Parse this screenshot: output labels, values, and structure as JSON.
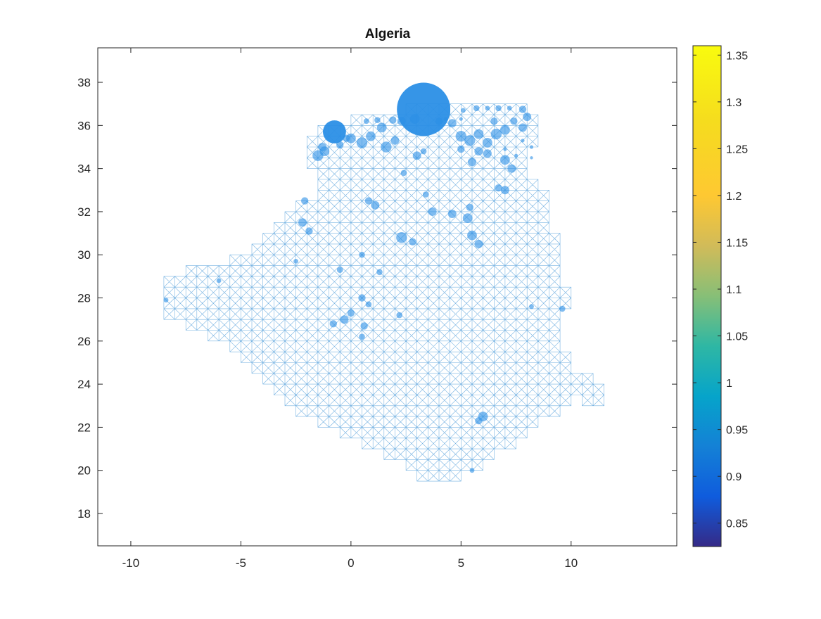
{
  "chart_data": {
    "type": "scatter",
    "title": "Algeria",
    "xlabel": "",
    "ylabel": "",
    "xlim": [
      -11.5,
      14.8
    ],
    "ylim": [
      16.5,
      39.6
    ],
    "xticks": [
      -10,
      -5,
      0,
      5,
      10
    ],
    "yticks": [
      18,
      20,
      22,
      24,
      26,
      28,
      30,
      32,
      34,
      36,
      38
    ],
    "grid": false,
    "colormap": "parula",
    "colorbar": {
      "limits": [
        0.825,
        1.36
      ],
      "ticks": [
        0.85,
        0.9,
        0.95,
        1,
        1.05,
        1.1,
        1.15,
        1.2,
        1.25,
        1.3,
        1.35
      ]
    },
    "marker_color": "#2b8fe6",
    "mesh_color": "#4a9ad8",
    "mesh_spacing": 0.5,
    "country_outline": [
      [
        -8.7,
        28.9
      ],
      [
        -8.7,
        27.3
      ],
      [
        -6.0,
        26.0
      ],
      [
        -4.8,
        25.0
      ],
      [
        -2.0,
        22.5
      ],
      [
        1.0,
        21.0
      ],
      [
        2.7,
        20.0
      ],
      [
        3.3,
        19.4
      ],
      [
        4.7,
        19.4
      ],
      [
        5.7,
        20.2
      ],
      [
        6.8,
        21.0
      ],
      [
        8.0,
        21.6
      ],
      [
        9.2,
        22.7
      ],
      [
        10.3,
        23.3
      ],
      [
        11.2,
        23.2
      ],
      [
        11.8,
        23.7
      ],
      [
        11.2,
        24.3
      ],
      [
        10.5,
        24.5
      ],
      [
        10.0,
        25.0
      ],
      [
        9.5,
        26.2
      ],
      [
        9.8,
        27.5
      ],
      [
        9.8,
        28.3
      ],
      [
        9.6,
        29.8
      ],
      [
        9.3,
        30.7
      ],
      [
        8.9,
        31.7
      ],
      [
        9.0,
        32.5
      ],
      [
        8.4,
        33.2
      ],
      [
        8.0,
        33.9
      ],
      [
        8.2,
        34.7
      ],
      [
        8.3,
        35.7
      ],
      [
        8.4,
        36.5
      ],
      [
        7.5,
        36.9
      ],
      [
        6.3,
        37.0
      ],
      [
        5.0,
        36.8
      ],
      [
        3.0,
        36.8
      ],
      [
        1.0,
        36.6
      ],
      [
        -1.0,
        36.0
      ],
      [
        -2.0,
        35.1
      ],
      [
        -1.8,
        34.3
      ],
      [
        -1.3,
        32.6
      ],
      [
        -2.5,
        32.2
      ],
      [
        -3.6,
        31.5
      ],
      [
        -3.8,
        30.9
      ],
      [
        -5.0,
        29.9
      ],
      [
        -7.0,
        29.4
      ]
    ],
    "points": [
      [
        3.3,
        36.75,
        4.4
      ],
      [
        -0.75,
        35.7,
        1.9
      ],
      [
        -1.5,
        34.6,
        0.9
      ],
      [
        -1.2,
        34.8,
        0.8
      ],
      [
        0.0,
        35.4,
        0.8
      ],
      [
        0.5,
        35.2,
        0.9
      ],
      [
        0.9,
        35.5,
        0.8
      ],
      [
        1.4,
        35.9,
        0.8
      ],
      [
        1.6,
        35.0,
        0.9
      ],
      [
        2.0,
        35.3,
        0.7
      ],
      [
        2.3,
        36.2,
        0.7
      ],
      [
        2.9,
        36.3,
        0.8
      ],
      [
        1.9,
        36.25,
        0.6
      ],
      [
        1.2,
        36.25,
        0.5
      ],
      [
        0.7,
        36.2,
        0.45
      ],
      [
        -0.2,
        35.4,
        0.6
      ],
      [
        -1.3,
        35.0,
        0.7
      ],
      [
        -0.5,
        35.1,
        0.6
      ],
      [
        3.0,
        34.6,
        0.7
      ],
      [
        3.3,
        34.8,
        0.5
      ],
      [
        4.0,
        36.2,
        0.6
      ],
      [
        4.6,
        36.1,
        0.7
      ],
      [
        5.0,
        35.5,
        0.9
      ],
      [
        5.4,
        35.3,
        0.9
      ],
      [
        5.8,
        35.6,
        0.8
      ],
      [
        6.2,
        35.2,
        0.8
      ],
      [
        6.6,
        35.6,
        0.9
      ],
      [
        7.0,
        35.8,
        0.8
      ],
      [
        7.4,
        36.2,
        0.6
      ],
      [
        7.8,
        35.9,
        0.7
      ],
      [
        8.0,
        36.4,
        0.7
      ],
      [
        6.5,
        36.2,
        0.6
      ],
      [
        5.7,
        36.8,
        0.5
      ],
      [
        6.2,
        36.8,
        0.4
      ],
      [
        6.7,
        36.8,
        0.5
      ],
      [
        7.2,
        36.8,
        0.4
      ],
      [
        7.8,
        36.75,
        0.6
      ],
      [
        5.1,
        36.7,
        0.4
      ],
      [
        5.0,
        36.3,
        0.3
      ],
      [
        4.3,
        36.3,
        0.3
      ],
      [
        5.0,
        34.9,
        0.6
      ],
      [
        5.8,
        34.8,
        0.7
      ],
      [
        6.2,
        34.7,
        0.7
      ],
      [
        5.5,
        34.3,
        0.7
      ],
      [
        7.0,
        34.4,
        0.8
      ],
      [
        7.3,
        34.0,
        0.7
      ],
      [
        6.7,
        33.1,
        0.6
      ],
      [
        7.0,
        33.0,
        0.7
      ],
      [
        2.4,
        33.8,
        0.5
      ],
      [
        1.1,
        32.3,
        0.7
      ],
      [
        0.8,
        32.5,
        0.6
      ],
      [
        3.4,
        32.8,
        0.5
      ],
      [
        3.7,
        32.0,
        0.7
      ],
      [
        4.6,
        31.9,
        0.7
      ],
      [
        5.4,
        32.2,
        0.6
      ],
      [
        5.3,
        31.7,
        0.8
      ],
      [
        5.5,
        30.9,
        0.8
      ],
      [
        5.8,
        30.5,
        0.7
      ],
      [
        2.3,
        30.8,
        0.9
      ],
      [
        2.8,
        30.6,
        0.6
      ],
      [
        -2.2,
        31.5,
        0.7
      ],
      [
        -1.9,
        31.1,
        0.6
      ],
      [
        -2.1,
        32.5,
        0.6
      ],
      [
        0.5,
        30.0,
        0.5
      ],
      [
        1.3,
        29.2,
        0.5
      ],
      [
        0.5,
        28.0,
        0.6
      ],
      [
        0.8,
        27.7,
        0.5
      ],
      [
        -0.8,
        26.8,
        0.6
      ],
      [
        -0.3,
        27.0,
        0.7
      ],
      [
        0.0,
        27.3,
        0.6
      ],
      [
        0.6,
        26.7,
        0.6
      ],
      [
        0.5,
        26.2,
        0.5
      ],
      [
        2.2,
        27.2,
        0.5
      ],
      [
        -0.5,
        29.3,
        0.5
      ],
      [
        -2.5,
        29.7,
        0.4
      ],
      [
        6.0,
        22.5,
        0.8
      ],
      [
        5.8,
        22.3,
        0.6
      ],
      [
        9.6,
        27.5,
        0.5
      ],
      [
        8.2,
        27.6,
        0.4
      ],
      [
        5.5,
        20.0,
        0.4
      ],
      [
        -8.4,
        27.9,
        0.4
      ],
      [
        -6.0,
        28.8,
        0.4
      ],
      [
        7.8,
        35.3,
        0.3
      ],
      [
        8.2,
        35.0,
        0.3
      ],
      [
        8.2,
        34.5,
        0.25
      ],
      [
        7.5,
        34.6,
        0.3
      ],
      [
        7.0,
        34.9,
        0.3
      ]
    ]
  }
}
